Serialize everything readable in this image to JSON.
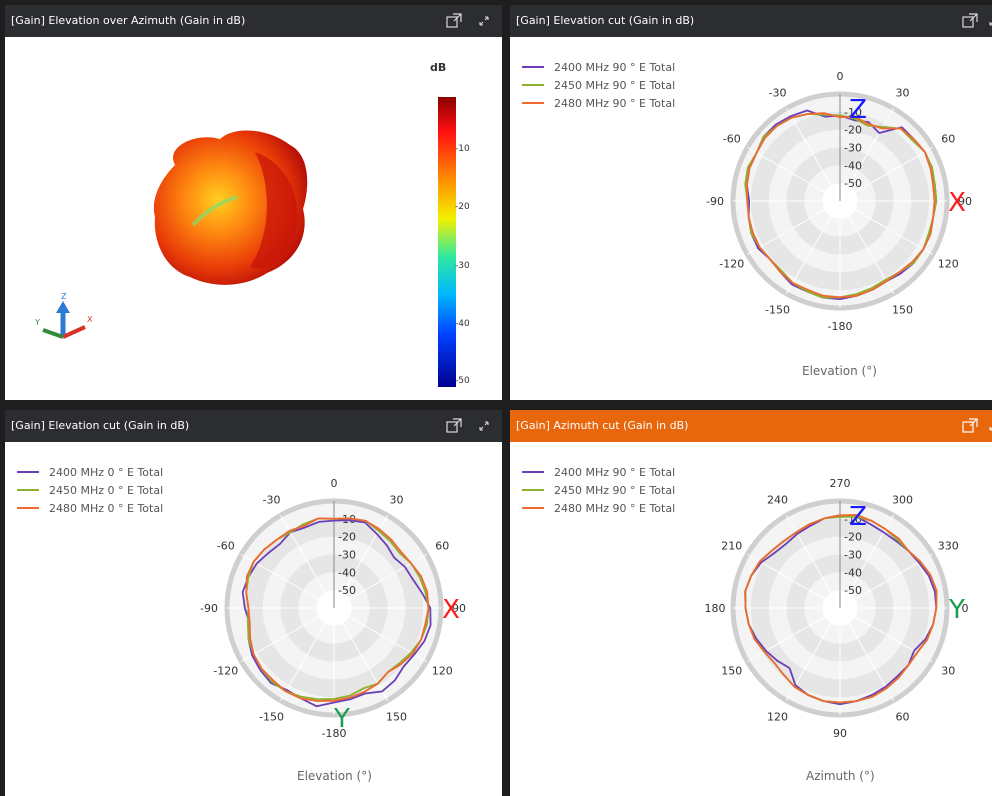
{
  "panels": {
    "top_left": {
      "title": "[Gain] Elevation over Azimuth (Gain in dB)",
      "colorbar_title": "dB",
      "colorbar_ticks": [
        "-10",
        "-20",
        "-30",
        "-40",
        "-50"
      ],
      "axis_letters": {
        "z": "Z",
        "x": "X",
        "y": "Y"
      }
    },
    "top_right": {
      "title": "[Gain] Elevation cut (Gain in dB)",
      "caption": "Elevation (°)"
    },
    "bottom_left": {
      "title": "[Gain] Elevation cut (Gain in dB)",
      "caption": "Elevation (°)"
    },
    "bottom_right": {
      "title": "[Gain] Azimuth cut (Gain in dB)",
      "caption": "Azimuth (°)"
    }
  },
  "colors": {
    "purple": "#6a3fb8",
    "olive": "#8eb030",
    "orange": "#ee6a30",
    "accent": "#e8660c"
  },
  "icons": [
    "popout-icon",
    "expand-icon"
  ],
  "chart_data": [
    {
      "type": "scatter",
      "title": "[Gain] Elevation over Azimuth (Gain in dB)",
      "note": "3D radiation pattern surface",
      "colorbar": {
        "label": "dB",
        "range": [
          -50,
          0
        ],
        "ticks": [
          -10,
          -20,
          -30,
          -40,
          -50
        ]
      }
    },
    {
      "type": "line",
      "polar": true,
      "title": "[Gain] Elevation cut (Gain in dB)",
      "xlabel": "Elevation (°)",
      "angle_ticks": [
        "0",
        "30",
        "60",
        "90",
        "120",
        "150",
        "-180",
        "-150",
        "-120",
        "-90",
        "-60",
        "-30"
      ],
      "radial_ticks": [
        "-10",
        "-20",
        "-30",
        "-40",
        "-50"
      ],
      "rlim": [
        -60,
        0
      ],
      "annotations": [
        "Z",
        "X"
      ],
      "series": [
        {
          "name": "2400 MHz 90 ° E Total",
          "color": "#6a3fb8",
          "values": [
            -12,
            -14,
            -13,
            -16,
            -6,
            -6,
            -5,
            -6,
            -6,
            -6,
            -7,
            -6,
            -6,
            -6,
            -7,
            -8,
            -7,
            -6,
            -5,
            -5,
            -6,
            -6,
            -8,
            -9,
            -7,
            -7,
            -8,
            -9,
            -7,
            -6,
            -6,
            -4,
            -4,
            -5,
            -6,
            -12
          ]
        },
        {
          "name": "2450 MHz 90 ° E Total",
          "color": "#8eb030",
          "values": [
            -12,
            -13,
            -15,
            -12,
            -7,
            -7,
            -5,
            -5,
            -6,
            -6,
            -7,
            -7,
            -6,
            -6,
            -8,
            -9,
            -8,
            -7,
            -6,
            -5,
            -6,
            -7,
            -9,
            -9,
            -8,
            -7,
            -8,
            -8,
            -6,
            -5,
            -6,
            -4,
            -5,
            -6,
            -8,
            -11
          ]
        },
        {
          "name": "2480 MHz 90 ° E Total",
          "color": "#ee6a30",
          "values": [
            -13,
            -12,
            -14,
            -13,
            -7,
            -6,
            -5,
            -6,
            -7,
            -7,
            -7,
            -6,
            -6,
            -7,
            -8,
            -8,
            -7,
            -6,
            -6,
            -6,
            -7,
            -7,
            -8,
            -9,
            -8,
            -8,
            -8,
            -8,
            -7,
            -6,
            -6,
            -5,
            -5,
            -6,
            -8,
            -10
          ]
        }
      ]
    },
    {
      "type": "line",
      "polar": true,
      "title": "[Gain] Elevation cut (Gain in dB)",
      "xlabel": "Elevation (°)",
      "angle_ticks": [
        "0",
        "30",
        "60",
        "90",
        "120",
        "150",
        "-180",
        "-150",
        "-120",
        "-90",
        "-60",
        "-30"
      ],
      "radial_ticks": [
        "-10",
        "-20",
        "-30",
        "-40",
        "-50"
      ],
      "rlim": [
        -60,
        0
      ],
      "annotations": [
        "X",
        "Y"
      ],
      "series": [
        {
          "name": "2400 MHz 0 ° E Total",
          "color": "#6a3fb8",
          "values": [
            -11,
            -10,
            -9,
            -12,
            -14,
            -16,
            -14,
            -13,
            -10,
            -6,
            -5,
            -6,
            -8,
            -9,
            -7,
            -6,
            -9,
            -8,
            -7,
            -4,
            -6,
            -7,
            -5,
            -6,
            -7,
            -9,
            -12,
            -10,
            -8,
            -9,
            -10,
            -12,
            -13,
            -11,
            -12,
            -11
          ]
        },
        {
          "name": "2450 MHz 0 ° E Total",
          "color": "#8eb030",
          "values": [
            -10,
            -9,
            -8,
            -10,
            -11,
            -12,
            -10,
            -9,
            -8,
            -7,
            -7,
            -8,
            -10,
            -12,
            -13,
            -11,
            -12,
            -10,
            -9,
            -8,
            -7,
            -6,
            -6,
            -7,
            -8,
            -9,
            -11,
            -12,
            -10,
            -9,
            -8,
            -9,
            -10,
            -11,
            -10,
            -9
          ]
        },
        {
          "name": "2480 MHz 0 ° E Total",
          "color": "#ee6a30",
          "values": [
            -10,
            -9,
            -8,
            -9,
            -10,
            -11,
            -10,
            -8,
            -7,
            -7,
            -8,
            -8,
            -9,
            -11,
            -13,
            -11,
            -10,
            -9,
            -8,
            -7,
            -6,
            -6,
            -7,
            -7,
            -8,
            -10,
            -12,
            -12,
            -10,
            -8,
            -8,
            -9,
            -10,
            -10,
            -11,
            -9
          ]
        }
      ]
    },
    {
      "type": "line",
      "polar": true,
      "title": "[Gain] Azimuth cut (Gain in dB)",
      "xlabel": "Azimuth (°)",
      "angle_ticks": [
        "270",
        "300",
        "330",
        "0",
        "30",
        "60",
        "90",
        "120",
        "150",
        "180",
        "210",
        "240"
      ],
      "radial_ticks": [
        "-10",
        "-20",
        "-30",
        "-40",
        "-50"
      ],
      "rlim": [
        -60,
        0
      ],
      "annotations": [
        "Z",
        "Y"
      ],
      "series": [
        {
          "name": "2400 MHz 90 ° E Total",
          "color": "#6a3fb8",
          "values": [
            -8,
            -8,
            -10,
            -11,
            -11,
            -10,
            -9,
            -7,
            -6,
            -6,
            -7,
            -9,
            -12,
            -10,
            -10,
            -9,
            -8,
            -7,
            -6,
            -7,
            -8,
            -10,
            -16,
            -14,
            -12,
            -10,
            -8,
            -7,
            -6,
            -7,
            -9,
            -12,
            -13,
            -12,
            -11,
            -9
          ]
        },
        {
          "name": "2450 MHz 90 ° E Total",
          "color": "#8eb030",
          "values": [
            -9,
            -8,
            -8,
            -9,
            -10,
            -10,
            -8,
            -6,
            -5,
            -6,
            -7,
            -8,
            -10,
            -10,
            -9,
            -8,
            -7,
            -7,
            -7,
            -7,
            -8,
            -9,
            -11,
            -12,
            -11,
            -9,
            -8,
            -7,
            -6,
            -7,
            -8,
            -10,
            -11,
            -11,
            -10,
            -9
          ]
        },
        {
          "name": "2480 MHz 90 ° E Total",
          "color": "#ee6a30",
          "values": [
            -8,
            -7,
            -8,
            -9,
            -9,
            -10,
            -8,
            -6,
            -5,
            -6,
            -7,
            -8,
            -10,
            -10,
            -9,
            -8,
            -7,
            -7,
            -7,
            -7,
            -8,
            -9,
            -11,
            -12,
            -11,
            -9,
            -8,
            -7,
            -6,
            -7,
            -8,
            -10,
            -11,
            -11,
            -10,
            -9
          ]
        }
      ]
    }
  ]
}
